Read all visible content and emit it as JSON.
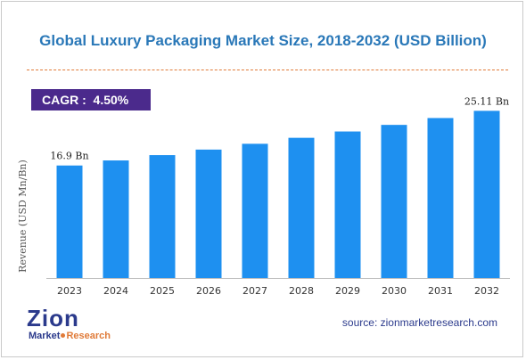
{
  "chart_data": {
    "type": "bar",
    "title": "Global Luxury Packaging Market Size, 2018-2032 (USD Billion)",
    "ylabel": "Revenue (USD Mn/Bn)",
    "xlabel": "",
    "categories": [
      "2023",
      "2024",
      "2025",
      "2026",
      "2027",
      "2028",
      "2029",
      "2030",
      "2031",
      "2032"
    ],
    "values": [
      16.9,
      17.66,
      18.46,
      19.29,
      20.16,
      21.06,
      22.01,
      23.0,
      24.03,
      25.11
    ],
    "data_labels": [
      {
        "index": 0,
        "text": "16.9 Bn"
      },
      {
        "index": 9,
        "text": "25.11 Bn"
      }
    ],
    "ylim": [
      0,
      26.5
    ],
    "bar_color": "#1e90f0",
    "grid": false,
    "legend": "none"
  },
  "cagr": {
    "text": "CAGR :  4.50%"
  },
  "source": {
    "text": "source: zionmarketresearch.com"
  },
  "logo": {
    "top": "Zion",
    "bottom_left": "Market",
    "bottom_right": "Research",
    "alt": "Zion Market Research"
  }
}
